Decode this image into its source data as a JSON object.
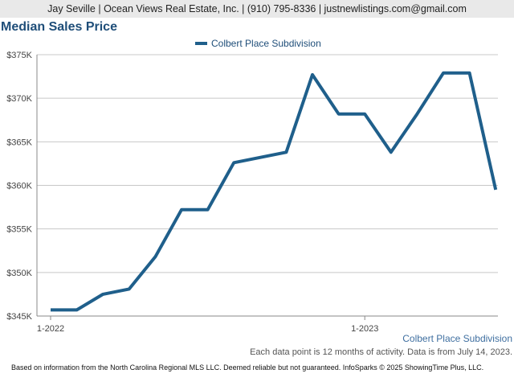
{
  "header": {
    "contact": "Jay Seville | Ocean Views Real Estate, Inc. | (910) 795-8336 | justnewlistings.com@gmail.com"
  },
  "title": "Median Sales Price",
  "series_caption": "Colbert Place Subdivision",
  "note": "Each data point is 12 months of activity. Data is from July 14, 2023.",
  "footer": "Based on information from the North Carolina Regional MLS LLC. Deemed reliable but not guaranteed. InfoSparks © 2025 ShowingTime Plus, LLC.",
  "colors": {
    "series": "#1f5f8b",
    "title": "#1f4e79"
  },
  "chart_data": {
    "type": "line",
    "ylim": [
      345000,
      375000
    ],
    "yticks": [
      345000,
      350000,
      355000,
      360000,
      365000,
      370000,
      375000
    ],
    "ytick_labels": [
      "$345K",
      "$350K",
      "$355K",
      "$360K",
      "$365K",
      "$370K",
      "$375K"
    ],
    "xtick_labels": [
      "1-2022",
      "1-2023"
    ],
    "xtick_index": [
      0,
      12
    ],
    "legend_position": "top-center",
    "grid": true,
    "x": [
      "2022-01",
      "2022-02",
      "2022-03",
      "2022-04",
      "2022-05",
      "2022-06",
      "2022-07",
      "2022-08",
      "2022-09",
      "2022-10",
      "2022-11",
      "2022-12",
      "2023-01",
      "2023-02",
      "2023-03",
      "2023-04",
      "2023-05",
      "2023-06"
    ],
    "series": [
      {
        "name": "Colbert Place Subdivision",
        "values": [
          345700,
          345700,
          347500,
          348100,
          351800,
          357200,
          357200,
          362600,
          363200,
          363800,
          372700,
          368200,
          368200,
          363800,
          368200,
          372900,
          372900,
          359500
        ]
      }
    ]
  }
}
